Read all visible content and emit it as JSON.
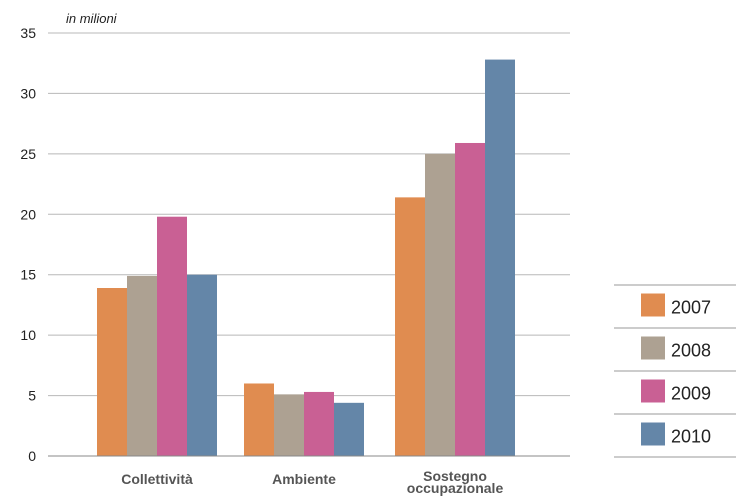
{
  "chart_data": {
    "type": "bar",
    "unit_label": "in milioni",
    "categories": [
      "Collettività",
      "Ambiente",
      "Sostegno occupazionale"
    ],
    "series": [
      {
        "name": "2007",
        "color": "#e08c50",
        "values": [
          13.9,
          6.0,
          21.4
        ]
      },
      {
        "name": "2008",
        "color": "#ada192",
        "values": [
          14.9,
          5.1,
          25.0
        ]
      },
      {
        "name": "2009",
        "color": "#c96094",
        "values": [
          19.8,
          5.3,
          25.9
        ]
      },
      {
        "name": "2010",
        "color": "#6486a8",
        "values": [
          15.0,
          4.4,
          32.8
        ]
      }
    ],
    "ylim": [
      0,
      35
    ],
    "yticks": [
      0,
      5,
      10,
      15,
      20,
      25,
      30,
      35
    ],
    "grid": true,
    "legend_position": "right"
  }
}
